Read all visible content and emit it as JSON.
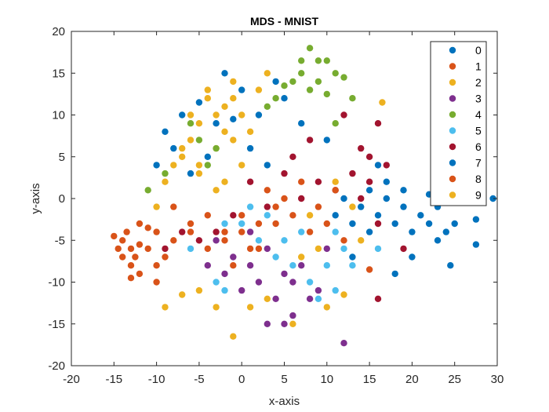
{
  "chart_data": {
    "type": "scatter",
    "title": "MDS - MNIST",
    "xlabel": "x-axis",
    "ylabel": "y-axis",
    "xlim": [
      -20,
      30
    ],
    "ylim": [
      -20,
      20
    ],
    "xticks": [
      -20,
      -15,
      -10,
      -5,
      0,
      5,
      10,
      15,
      20,
      25,
      30
    ],
    "yticks": [
      -20,
      -15,
      -10,
      -5,
      0,
      5,
      10,
      15,
      20
    ],
    "grid": false,
    "legend": "top-right",
    "series": [
      {
        "name": "0",
        "color": "#0072BD",
        "points": [
          [
            -2,
            15
          ],
          [
            -5,
            11.5
          ],
          [
            -7,
            10
          ],
          [
            -9,
            8
          ],
          [
            -3,
            9
          ],
          [
            2,
            10
          ],
          [
            4,
            14
          ],
          [
            7,
            9
          ],
          [
            10,
            7
          ],
          [
            -6,
            3
          ],
          [
            -10,
            4
          ],
          [
            -8,
            6
          ],
          [
            1,
            6
          ],
          [
            3,
            4
          ],
          [
            -4,
            5
          ],
          [
            5,
            12
          ],
          [
            0,
            13
          ],
          [
            -1,
            9.5
          ]
        ]
      },
      {
        "name": "1",
        "color": "#D95319",
        "points": [
          [
            -15,
            -4.5
          ],
          [
            -14,
            -5
          ],
          [
            -13,
            -6
          ],
          [
            -14,
            -7
          ],
          [
            -12,
            -5.5
          ],
          [
            -13,
            -8
          ],
          [
            -12,
            -9
          ],
          [
            -14.5,
            -6
          ],
          [
            -13.5,
            -4
          ],
          [
            -12.5,
            -7
          ],
          [
            -11,
            -6
          ],
          [
            -10,
            -8
          ],
          [
            -9,
            -7
          ],
          [
            -8,
            -5
          ],
          [
            -6,
            -4
          ],
          [
            -4,
            -6
          ],
          [
            -2,
            -5
          ],
          [
            0,
            -4
          ],
          [
            2,
            -6
          ],
          [
            4,
            -3
          ],
          [
            -11,
            -3.5
          ],
          [
            -13,
            -9.5
          ],
          [
            -12,
            -3
          ],
          [
            -10,
            -10
          ]
        ]
      },
      {
        "name": "2",
        "color": "#EDB120",
        "points": [
          [
            -4,
            12
          ],
          [
            -3,
            10
          ],
          [
            -2,
            11
          ],
          [
            -1,
            12
          ],
          [
            0,
            10
          ],
          [
            -5,
            9
          ],
          [
            -6,
            7
          ],
          [
            -7,
            5
          ],
          [
            -3,
            6
          ],
          [
            -1,
            7
          ],
          [
            1,
            8
          ],
          [
            2,
            13
          ],
          [
            -8,
            4
          ],
          [
            -5,
            3
          ],
          [
            -2,
            2
          ],
          [
            0,
            4
          ],
          [
            -9,
            2
          ],
          [
            -4,
            13
          ],
          [
            -1,
            14
          ],
          [
            3,
            15
          ],
          [
            -6,
            10
          ],
          [
            -2,
            8
          ]
        ]
      },
      {
        "name": "3",
        "color": "#7E2F8E",
        "points": [
          [
            -3,
            -5
          ],
          [
            -1,
            -7
          ],
          [
            1,
            -8
          ],
          [
            3,
            -6
          ],
          [
            5,
            -9
          ],
          [
            7,
            -8
          ],
          [
            2,
            -10
          ],
          [
            4,
            -12
          ],
          [
            6,
            -14
          ],
          [
            8,
            -12
          ],
          [
            0,
            -11
          ],
          [
            -2,
            -9
          ],
          [
            3,
            -15
          ],
          [
            5,
            -15
          ],
          [
            -4,
            -8
          ],
          [
            1,
            -4
          ],
          [
            10,
            -6
          ],
          [
            12,
            -17.3
          ],
          [
            6,
            -10
          ],
          [
            9,
            -11
          ]
        ]
      },
      {
        "name": "4",
        "color": "#77AC30",
        "points": [
          [
            8,
            18
          ],
          [
            7,
            16.5
          ],
          [
            9,
            16.5
          ],
          [
            10,
            16.5
          ],
          [
            11,
            15
          ],
          [
            12,
            14.5
          ],
          [
            7,
            15
          ],
          [
            6,
            14
          ],
          [
            5,
            13.5
          ],
          [
            4,
            12
          ],
          [
            8,
            13
          ],
          [
            9,
            14
          ],
          [
            13,
            12
          ],
          [
            10,
            12.5
          ],
          [
            -9,
            3
          ],
          [
            -5,
            7
          ],
          [
            -3,
            6
          ],
          [
            -6,
            9
          ],
          [
            -4,
            4
          ],
          [
            3,
            11
          ],
          [
            11,
            9
          ],
          [
            -11,
            1
          ]
        ]
      },
      {
        "name": "5",
        "color": "#4DBEEE",
        "points": [
          [
            0,
            -3
          ],
          [
            2,
            -5
          ],
          [
            4,
            -7
          ],
          [
            6,
            -8
          ],
          [
            8,
            -10
          ],
          [
            10,
            -8
          ],
          [
            12,
            -6
          ],
          [
            9,
            -12
          ],
          [
            11,
            -11
          ],
          [
            -3,
            -10
          ],
          [
            -6,
            -6
          ],
          [
            -2,
            -3
          ],
          [
            1,
            -1
          ],
          [
            3,
            -2
          ],
          [
            7,
            -4
          ],
          [
            11,
            -4
          ],
          [
            13,
            -8
          ],
          [
            5,
            -5
          ],
          [
            16,
            -6
          ],
          [
            -2,
            -11
          ]
        ]
      },
      {
        "name": "6",
        "color": "#A2142F",
        "points": [
          [
            12,
            10
          ],
          [
            14,
            6
          ],
          [
            16,
            9
          ],
          [
            15,
            5
          ],
          [
            17,
            4
          ],
          [
            13,
            3
          ],
          [
            11,
            1
          ],
          [
            9,
            2
          ],
          [
            7,
            0
          ],
          [
            5,
            3
          ],
          [
            3,
            -1
          ],
          [
            1,
            2
          ],
          [
            -1,
            -2
          ],
          [
            -3,
            -4
          ],
          [
            -5,
            -5
          ],
          [
            -7,
            -4
          ],
          [
            -9,
            -6
          ],
          [
            6,
            5
          ],
          [
            8,
            7
          ],
          [
            15,
            2
          ],
          [
            14,
            0
          ],
          [
            16,
            -3
          ],
          [
            19,
            -6
          ],
          [
            16,
            -12
          ]
        ]
      },
      {
        "name": "7",
        "color": "#0072BD",
        "points": [
          [
            29.5,
            0
          ],
          [
            27.5,
            -2.5
          ],
          [
            27.5,
            -5.5
          ],
          [
            25,
            -3
          ],
          [
            24,
            -4
          ],
          [
            23,
            -1
          ],
          [
            22,
            -3
          ],
          [
            21,
            -2
          ],
          [
            20,
            -4
          ],
          [
            19,
            -1
          ],
          [
            18,
            -3
          ],
          [
            17,
            0
          ],
          [
            16,
            -2
          ],
          [
            15,
            -4
          ],
          [
            14,
            -1
          ],
          [
            13,
            -3
          ],
          [
            12,
            0
          ],
          [
            11,
            -2
          ],
          [
            18,
            -9
          ],
          [
            20,
            -7
          ],
          [
            23,
            -5
          ],
          [
            24.5,
            -8
          ],
          [
            22,
            0.5
          ],
          [
            19,
            1
          ],
          [
            17,
            2
          ],
          [
            16,
            4
          ],
          [
            13,
            -7
          ],
          [
            15,
            1
          ]
        ]
      },
      {
        "name": "8",
        "color": "#D95319",
        "points": [
          [
            -2,
            -4
          ],
          [
            0,
            -2
          ],
          [
            2,
            -3
          ],
          [
            4,
            -1
          ],
          [
            6,
            -2
          ],
          [
            8,
            -4
          ],
          [
            10,
            -3
          ],
          [
            12,
            -5
          ],
          [
            -4,
            -2
          ],
          [
            -6,
            -3
          ],
          [
            -8,
            -1
          ],
          [
            -10,
            -4
          ],
          [
            3,
            1
          ],
          [
            5,
            0
          ],
          [
            7,
            2
          ],
          [
            1,
            -6
          ],
          [
            -1,
            -8
          ],
          [
            15,
            -8.5
          ],
          [
            9,
            -1
          ],
          [
            11,
            1
          ]
        ]
      },
      {
        "name": "9",
        "color": "#EDB120",
        "points": [
          [
            16.5,
            11.5
          ],
          [
            10,
            -13
          ],
          [
            12,
            -11.5
          ],
          [
            -3,
            -13
          ],
          [
            -5,
            -11
          ],
          [
            -7,
            -11.5
          ],
          [
            -1,
            -16.5
          ],
          [
            6,
            -15
          ],
          [
            3,
            -12
          ],
          [
            1,
            -13
          ],
          [
            -9,
            -13
          ],
          [
            13,
            -1
          ],
          [
            11,
            2
          ],
          [
            8,
            -2
          ],
          [
            9,
            -6
          ],
          [
            14,
            -5
          ],
          [
            7,
            -7
          ],
          [
            -5,
            4
          ],
          [
            -7,
            6
          ],
          [
            -3,
            1
          ],
          [
            -10,
            -1
          ]
        ]
      }
    ]
  }
}
